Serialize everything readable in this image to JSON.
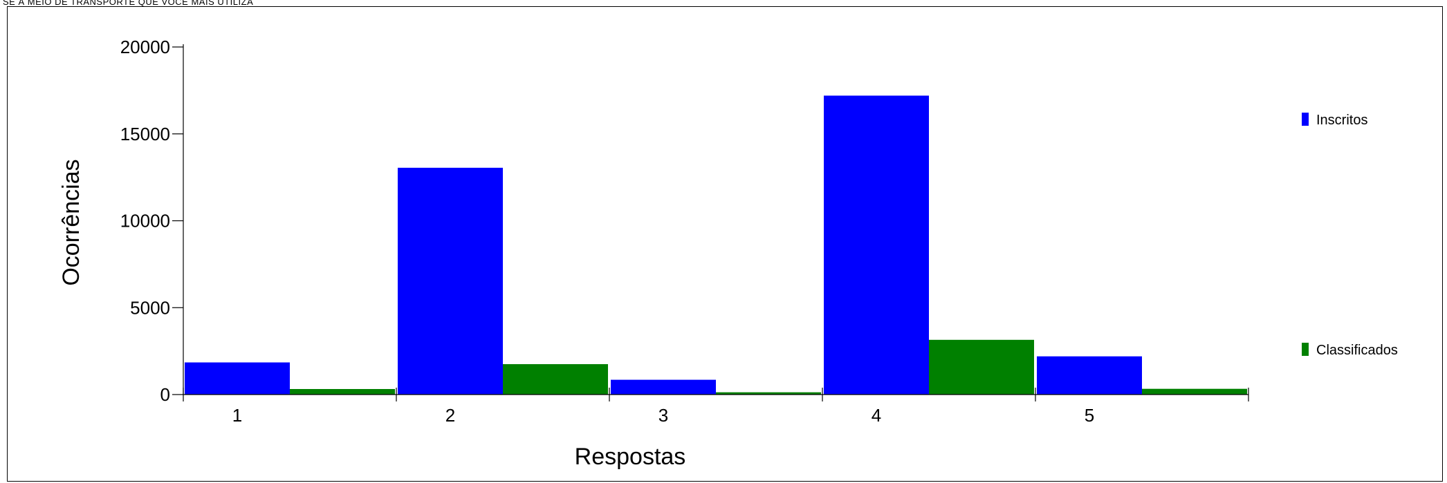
{
  "page": {
    "title": "SE À MEIO DE TRANSPORTE QUE VOCÊ MAIS UTILIZA"
  },
  "chart_data": {
    "type": "bar",
    "categories": [
      "1",
      "2",
      "3",
      "4",
      "5"
    ],
    "series": [
      {
        "name": "Inscritos",
        "color": "#0000ff",
        "values": [
          1850,
          13050,
          850,
          17200,
          2200
        ]
      },
      {
        "name": "Classificados",
        "color": "#008000",
        "values": [
          320,
          1750,
          130,
          3150,
          330
        ]
      }
    ],
    "xlabel": "Respostas",
    "ylabel": "Ocorrências",
    "ylim": [
      0,
      20000
    ],
    "yticks": [
      0,
      5000,
      10000,
      15000,
      20000
    ],
    "grid": false,
    "legend_position": "right"
  }
}
